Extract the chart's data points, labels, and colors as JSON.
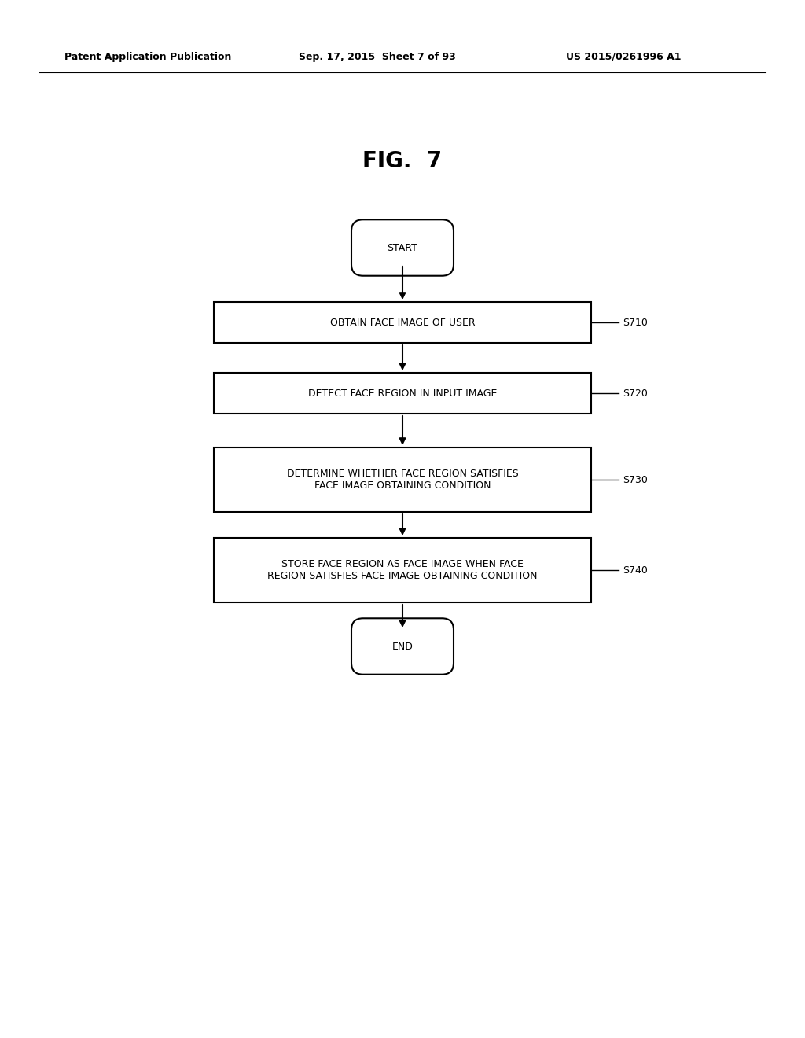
{
  "bg_color": "#ffffff",
  "header_left": "Patent Application Publication",
  "header_center": "Sep. 17, 2015  Sheet 7 of 93",
  "header_right": "US 2015/0261996 A1",
  "fig_title": "FIG.  7",
  "start_label": "START",
  "end_label": "END",
  "boxes": [
    {
      "label": "OBTAIN FACE IMAGE OF USER",
      "tag": "S710",
      "lines": 1
    },
    {
      "label": "DETECT FACE REGION IN INPUT IMAGE",
      "tag": "S720",
      "lines": 1
    },
    {
      "label": "DETERMINE WHETHER FACE REGION SATISFIES\nFACE IMAGE OBTAINING CONDITION",
      "tag": "S730",
      "lines": 2
    },
    {
      "label": "STORE FACE REGION AS FACE IMAGE WHEN FACE\nREGION SATISFIES FACE IMAGE OBTAINING CONDITION",
      "tag": "S740",
      "lines": 2
    }
  ],
  "box_color": "#000000",
  "text_color": "#000000",
  "bg_color_box": "#ffffff",
  "font_size_box": 9,
  "font_size_header": 9,
  "font_size_title": 20,
  "font_size_tag": 9
}
